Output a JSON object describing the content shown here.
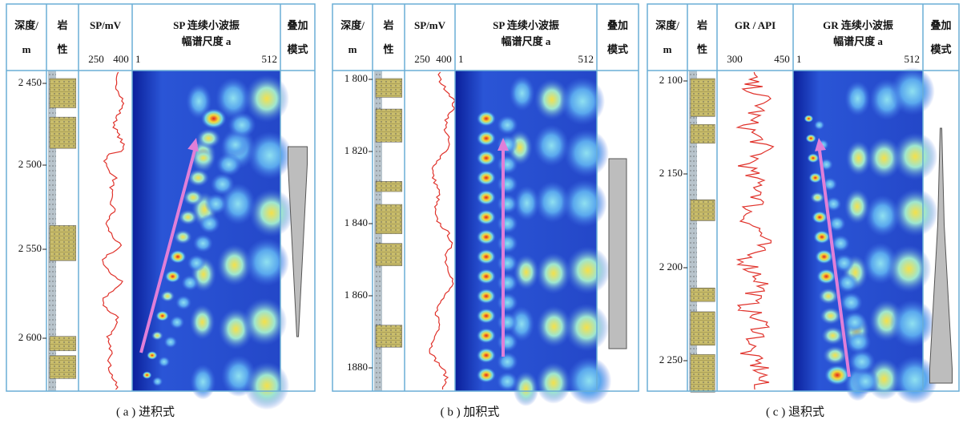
{
  "panels": [
    {
      "depth_header": "深度/",
      "depth_unit": "m",
      "lith_header": "岩",
      "lith_header2": "性",
      "log_header": "SP/mV",
      "log_min": "250",
      "log_max": "400",
      "scalogram_title": "SP 连续小波振",
      "scalogram_title2": "幅谱尺度 a",
      "scale_min": "1",
      "scale_max": "512",
      "mode_header": "叠加",
      "mode_header2": "模式",
      "depth_ticks": [
        "2 450",
        "2 500",
        "2 550",
        "2 600"
      ],
      "caption": "( a ) 进积式"
    },
    {
      "depth_header": "深度/",
      "depth_unit": "m",
      "lith_header": "岩",
      "lith_header2": "性",
      "log_header": "SP/mV",
      "log_min": "250",
      "log_max": "400",
      "scalogram_title": "SP 连续小波振",
      "scalogram_title2": "幅谱尺度 a",
      "scale_min": "1",
      "scale_max": "512",
      "mode_header": "叠加",
      "mode_header2": "模式",
      "depth_ticks": [
        "1 800",
        "1 820",
        "1 840",
        "1 860",
        "1880"
      ],
      "caption": "( b ) 加积式"
    },
    {
      "depth_header": "深度/",
      "depth_unit": "m",
      "lith_header": "岩",
      "lith_header2": "性",
      "log_header": "GR / API",
      "log_min": "300",
      "log_max": "450",
      "scalogram_title": "GR 连续小波振",
      "scalogram_title2": "幅谱尺度 a",
      "scale_min": "1",
      "scale_max": "512",
      "mode_header": "叠加",
      "mode_header2": "模式",
      "depth_ticks": [
        "2 100",
        "2 150",
        "2 200",
        "2 250"
      ],
      "caption": "( c ) 退积式"
    }
  ]
}
